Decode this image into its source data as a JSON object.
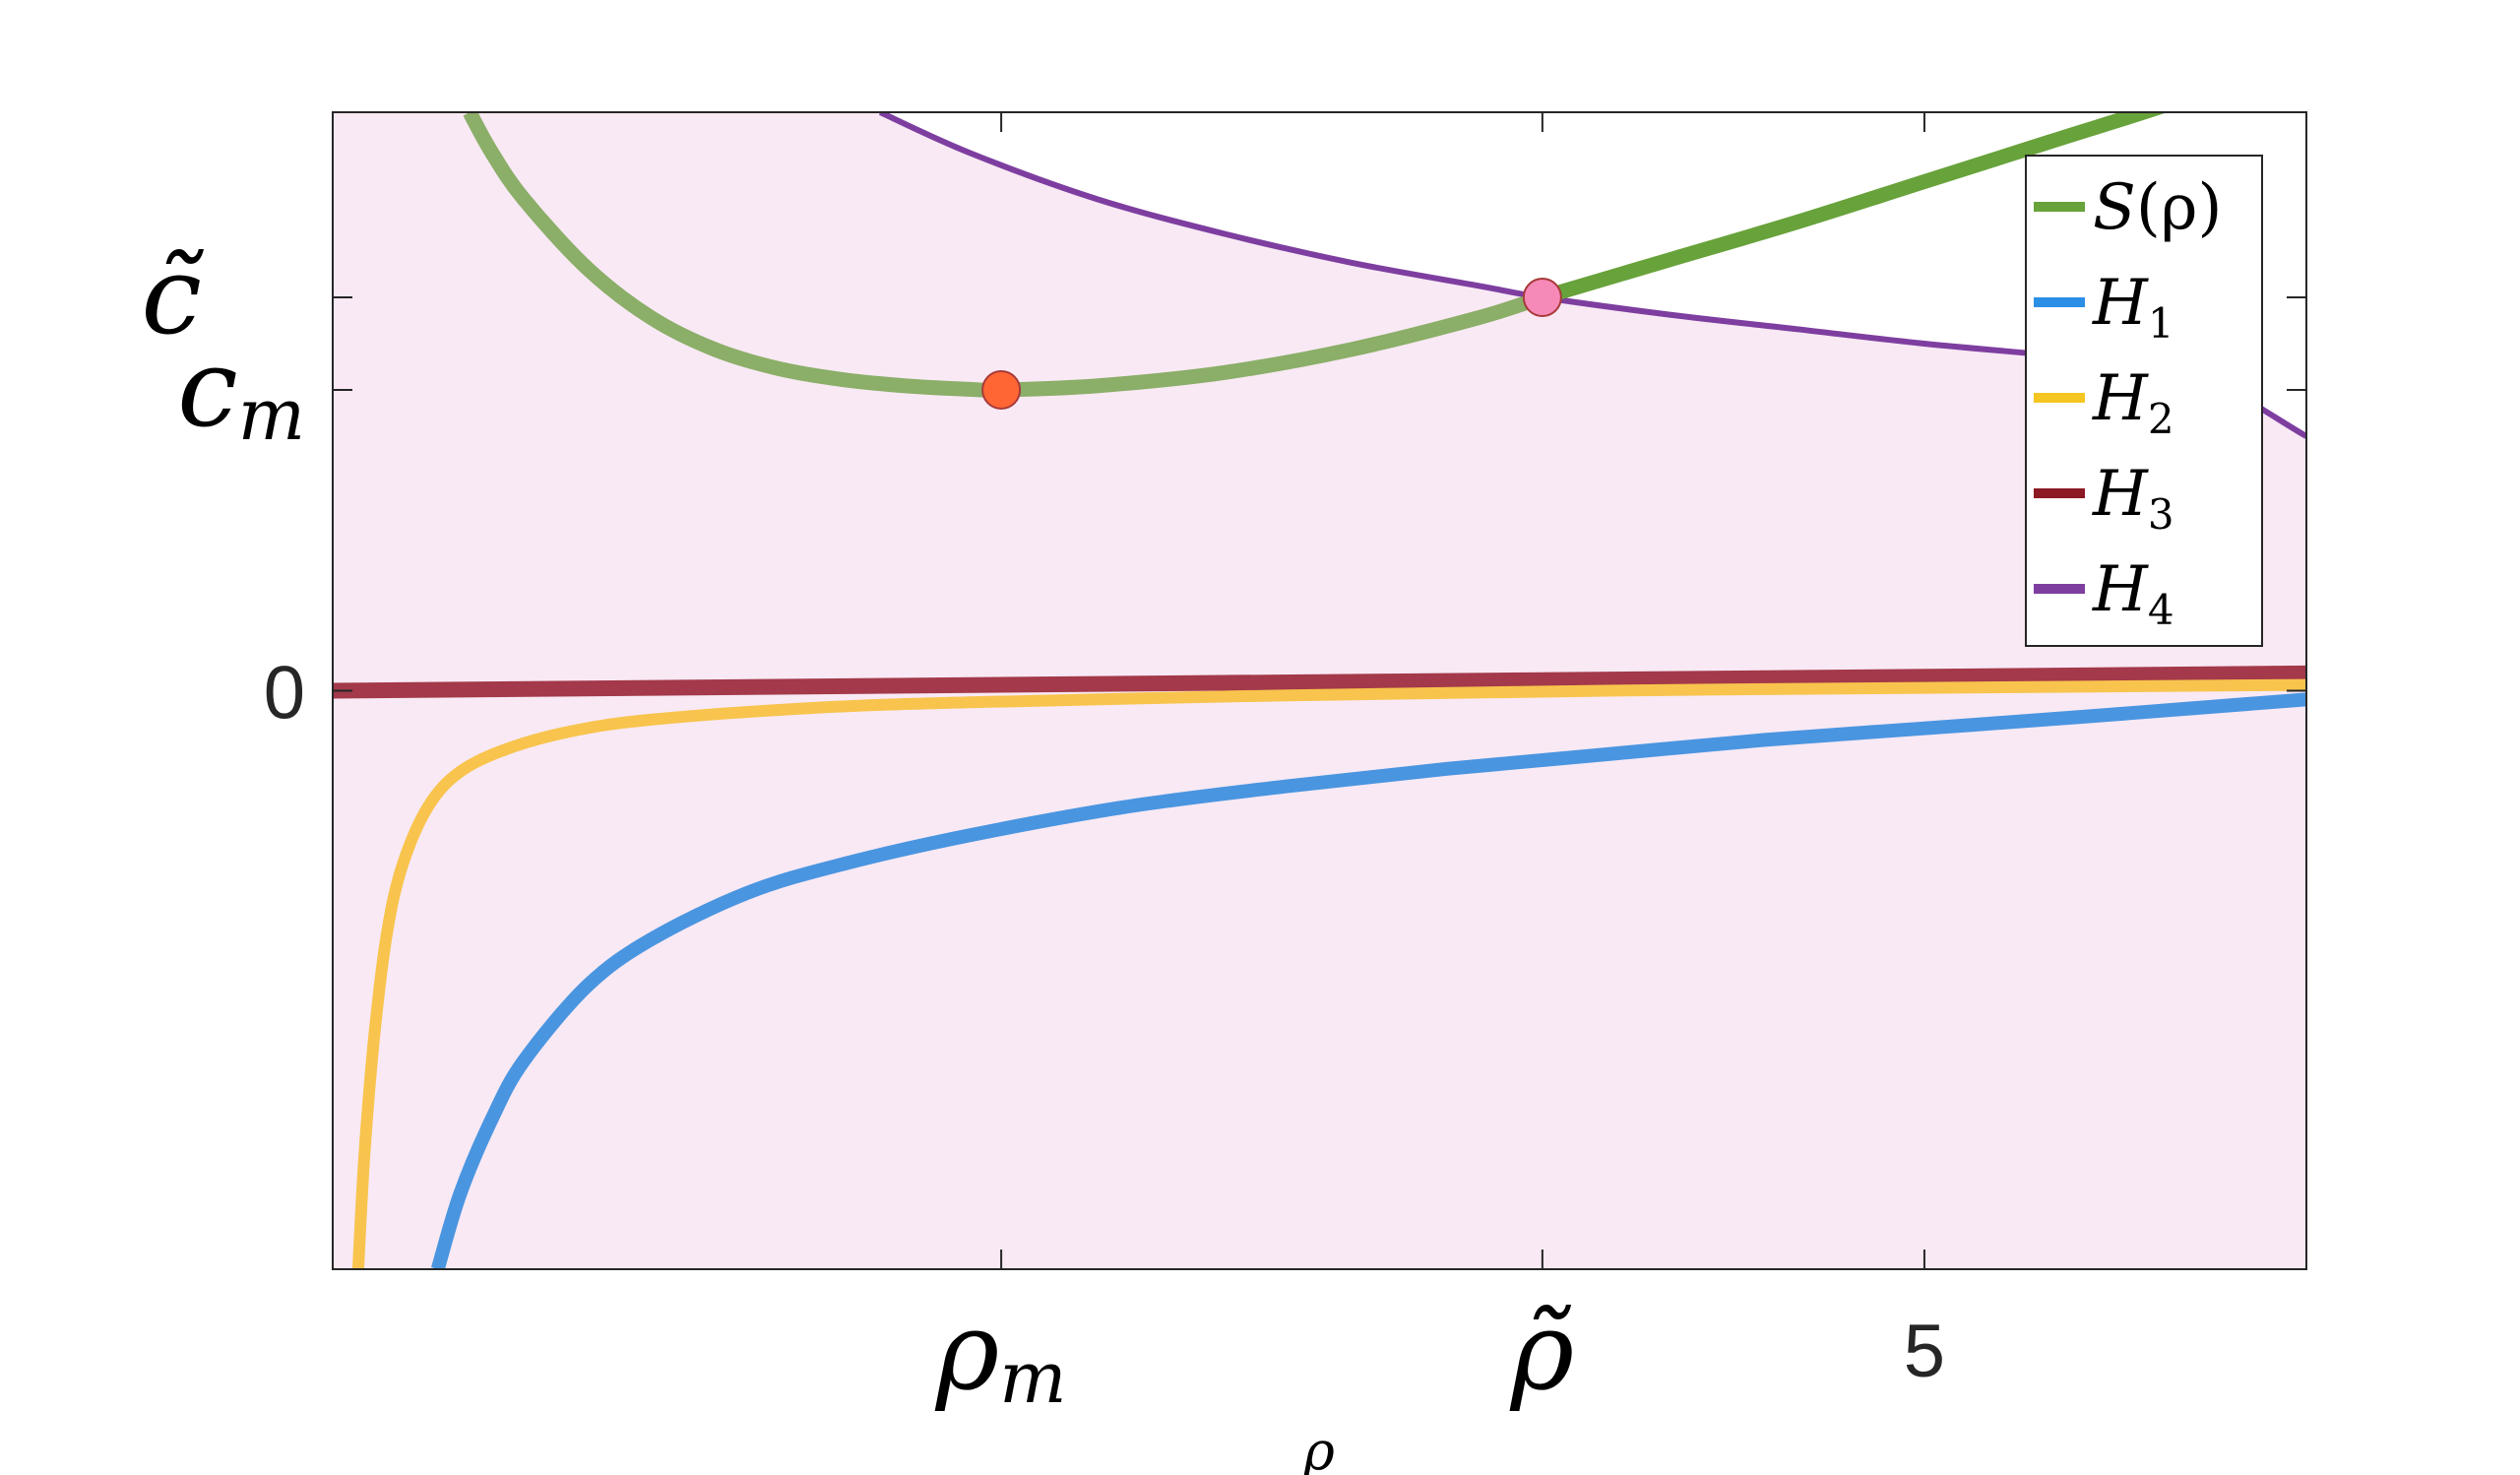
{
  "chart_data": {
    "type": "line",
    "xlabel": "ρ",
    "ylabel": "",
    "xlim": [
      0,
      6.2
    ],
    "ylim": [
      -1.0,
      1.0
    ],
    "x_ticks": [
      {
        "value": 2.1,
        "label": "ρ",
        "sub": "m"
      },
      {
        "value": 3.8,
        "label": "ρ̃",
        "sub": ""
      },
      {
        "value": 5.0,
        "label": "5",
        "sub": ""
      }
    ],
    "y_ticks": [
      {
        "value": 0.0,
        "label": "0",
        "sub": ""
      },
      {
        "value": 0.52,
        "label": "c",
        "sub": "m"
      },
      {
        "value": 0.68,
        "label": "c̃",
        "sub": ""
      }
    ],
    "shaded_region": {
      "description_color": "#f8e9f4",
      "bounded_above_by": "H4"
    },
    "series": [
      {
        "name": "S(ρ)",
        "color": "#68a23a",
        "faded_color": "#8bae68",
        "x": [
          0.43,
          0.5,
          0.6,
          0.8,
          1.0,
          1.2,
          1.4,
          1.6,
          1.8,
          2.0,
          2.1,
          2.4,
          2.8,
          3.2,
          3.6,
          3.8,
          4.2,
          4.6,
          5.0,
          5.4,
          5.8,
          6.2
        ],
        "y": [
          1.0,
          0.93,
          0.85,
          0.73,
          0.645,
          0.59,
          0.557,
          0.538,
          0.527,
          0.521,
          0.52,
          0.527,
          0.55,
          0.59,
          0.645,
          0.68,
          0.745,
          0.81,
          0.88,
          0.95,
          1.02,
          1.1
        ]
      },
      {
        "name": "H1",
        "color": "#4a95e0",
        "x": [
          0.33,
          0.4,
          0.5,
          0.6,
          0.8,
          1.0,
          1.3,
          1.6,
          2.0,
          2.5,
          3.0,
          3.5,
          4.0,
          4.5,
          5.0,
          5.5,
          6.2
        ],
        "y": [
          -1.0,
          -0.87,
          -0.74,
          -0.64,
          -0.51,
          -0.43,
          -0.35,
          -0.3,
          -0.25,
          -0.2,
          -0.165,
          -0.135,
          -0.11,
          -0.085,
          -0.065,
          -0.045,
          -0.015
        ]
      },
      {
        "name": "H2",
        "color": "#f8c44d",
        "x": [
          0.08,
          0.1,
          0.13,
          0.17,
          0.22,
          0.3,
          0.4,
          0.55,
          0.75,
          1.0,
          1.5,
          2.0,
          3.0,
          4.0,
          5.0,
          6.2
        ],
        "y": [
          -1.0,
          -0.8,
          -0.6,
          -0.42,
          -0.3,
          -0.2,
          -0.14,
          -0.1,
          -0.07,
          -0.05,
          -0.03,
          -0.02,
          -0.008,
          0.0,
          0.005,
          0.01
        ]
      },
      {
        "name": "H3",
        "color": "#a3394a",
        "x": [
          0.0,
          6.2
        ],
        "y": [
          0.0,
          0.03
        ]
      },
      {
        "name": "H4",
        "color": "#7e3ea0",
        "x": [
          1.72,
          2.0,
          2.4,
          2.8,
          3.2,
          3.6,
          3.8,
          4.2,
          4.6,
          5.0,
          5.4,
          5.8,
          6.2
        ],
        "y": [
          1.0,
          0.93,
          0.85,
          0.79,
          0.74,
          0.7,
          0.68,
          0.65,
          0.625,
          0.6,
          0.58,
          0.56,
          0.44
        ]
      }
    ],
    "points": [
      {
        "x": 2.1,
        "y": 0.52,
        "color": "#ff6633"
      },
      {
        "x": 3.8,
        "y": 0.68,
        "color": "#f58ab8"
      }
    ],
    "legend": {
      "placement": "top-right",
      "entries": [
        {
          "label": "S",
          "arg": "(ρ)",
          "sub": "",
          "color": "#68a23a"
        },
        {
          "label": "H",
          "arg": "",
          "sub": "1",
          "color": "#2b8fe6"
        },
        {
          "label": "H",
          "arg": "",
          "sub": "2",
          "color": "#f5c521"
        },
        {
          "label": "H",
          "arg": "",
          "sub": "3",
          "color": "#8c1a24"
        },
        {
          "label": "H",
          "arg": "",
          "sub": "4",
          "color": "#7e3ea0"
        }
      ]
    }
  }
}
